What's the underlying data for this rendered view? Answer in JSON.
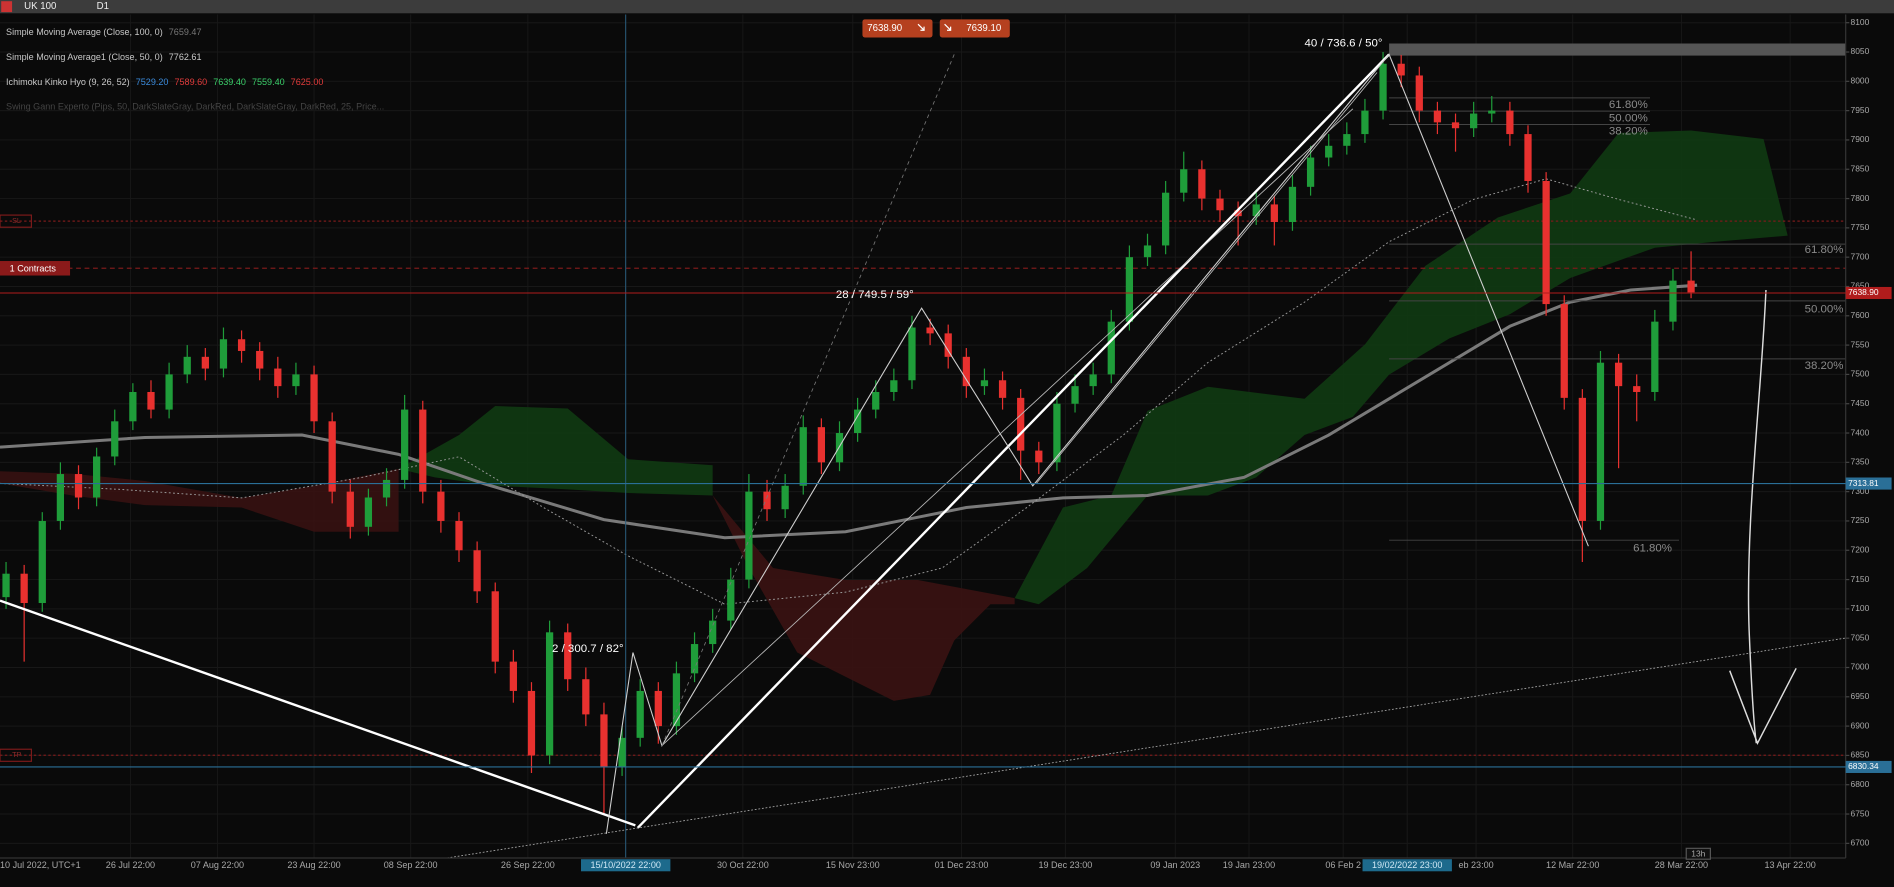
{
  "chart_data": {
    "type": "candlestick",
    "title": "UK 100",
    "timeframe": "D1",
    "up_color": "#1f9d3a",
    "down_color": "#e8312f",
    "grid": true,
    "ylim": [
      6675,
      8114
    ],
    "yticks": [
      6700,
      6750,
      6800,
      6850,
      6900,
      6950,
      7000,
      7050,
      7100,
      7150,
      7200,
      7250,
      7300,
      7350,
      7400,
      7450,
      7500,
      7550,
      7600,
      7650,
      7700,
      7750,
      7800,
      7850,
      7900,
      7950,
      8000,
      8050,
      8100
    ],
    "x_tick_labels": [
      "10 Jul 2022, UTC+1",
      "26 Jul 22:00",
      "07 Aug 22:00",
      "23 Aug 22:00",
      "08 Sep 22:00",
      "26 Sep 22:00",
      "15/10/2022 22:00",
      "30 Oct 22:00",
      "15 Nov 23:00",
      "01 Dec 23:00",
      "19 Dec 23:00",
      "09 Jan 2023",
      "19 Jan 23:00",
      "06 Feb 2",
      "19/02/2022 23:00",
      "eb 23:00",
      "12 Mar 22:00",
      "28 Mar 22:00",
      "13 Apr 22:00"
    ],
    "candles": [
      [
        7120,
        7180,
        7100,
        7160
      ],
      [
        7160,
        7175,
        7010,
        7110
      ],
      [
        7110,
        7265,
        7095,
        7250
      ],
      [
        7250,
        7350,
        7235,
        7330
      ],
      [
        7330,
        7345,
        7270,
        7290
      ],
      [
        7290,
        7375,
        7275,
        7360
      ],
      [
        7360,
        7440,
        7345,
        7420
      ],
      [
        7420,
        7485,
        7405,
        7470
      ],
      [
        7470,
        7490,
        7425,
        7440
      ],
      [
        7440,
        7520,
        7425,
        7500
      ],
      [
        7500,
        7550,
        7485,
        7530
      ],
      [
        7530,
        7545,
        7490,
        7510
      ],
      [
        7510,
        7580,
        7495,
        7560
      ],
      [
        7560,
        7575,
        7520,
        7540
      ],
      [
        7540,
        7555,
        7490,
        7510
      ],
      [
        7510,
        7530,
        7460,
        7480
      ],
      [
        7480,
        7520,
        7465,
        7500
      ],
      [
        7500,
        7515,
        7400,
        7420
      ],
      [
        7420,
        7435,
        7280,
        7300
      ],
      [
        7300,
        7320,
        7220,
        7240
      ],
      [
        7240,
        7305,
        7225,
        7290
      ],
      [
        7290,
        7340,
        7275,
        7320
      ],
      [
        7320,
        7465,
        7305,
        7440
      ],
      [
        7440,
        7455,
        7280,
        7300
      ],
      [
        7300,
        7320,
        7230,
        7250
      ],
      [
        7250,
        7265,
        7180,
        7200
      ],
      [
        7200,
        7215,
        7110,
        7130
      ],
      [
        7130,
        7145,
        6990,
        7010
      ],
      [
        7010,
        7030,
        6940,
        6960
      ],
      [
        6960,
        6975,
        6820,
        6850
      ],
      [
        6850,
        7080,
        6835,
        7060
      ],
      [
        7060,
        7075,
        6960,
        6980
      ],
      [
        6980,
        7000,
        6900,
        6920
      ],
      [
        6920,
        6940,
        6750,
        6830
      ],
      [
        6830,
        6900,
        6815,
        6880
      ],
      [
        6880,
        6980,
        6865,
        6960
      ],
      [
        6960,
        6975,
        6870,
        6900
      ],
      [
        6900,
        7010,
        6885,
        6990
      ],
      [
        6990,
        7060,
        6975,
        7040
      ],
      [
        7040,
        7100,
        7025,
        7080
      ],
      [
        7080,
        7170,
        7065,
        7150
      ],
      [
        7150,
        7330,
        7135,
        7300
      ],
      [
        7300,
        7320,
        7250,
        7270
      ],
      [
        7270,
        7330,
        7255,
        7310
      ],
      [
        7310,
        7430,
        7295,
        7410
      ],
      [
        7410,
        7425,
        7330,
        7350
      ],
      [
        7350,
        7420,
        7335,
        7400
      ],
      [
        7400,
        7460,
        7385,
        7440
      ],
      [
        7440,
        7490,
        7425,
        7470
      ],
      [
        7470,
        7510,
        7455,
        7490
      ],
      [
        7490,
        7600,
        7475,
        7580
      ],
      [
        7580,
        7595,
        7550,
        7570
      ],
      [
        7570,
        7585,
        7510,
        7530
      ],
      [
        7530,
        7545,
        7460,
        7480
      ],
      [
        7480,
        7510,
        7465,
        7490
      ],
      [
        7490,
        7505,
        7440,
        7460
      ],
      [
        7460,
        7475,
        7320,
        7370
      ],
      [
        7370,
        7385,
        7330,
        7350
      ],
      [
        7350,
        7470,
        7335,
        7450
      ],
      [
        7450,
        7500,
        7435,
        7480
      ],
      [
        7480,
        7520,
        7465,
        7500
      ],
      [
        7500,
        7610,
        7485,
        7590
      ],
      [
        7590,
        7720,
        7575,
        7700
      ],
      [
        7700,
        7740,
        7685,
        7720
      ],
      [
        7720,
        7830,
        7705,
        7810
      ],
      [
        7810,
        7880,
        7795,
        7850
      ],
      [
        7850,
        7865,
        7780,
        7800
      ],
      [
        7800,
        7815,
        7760,
        7780
      ],
      [
        7780,
        7795,
        7720,
        7770
      ],
      [
        7770,
        7810,
        7755,
        7790
      ],
      [
        7790,
        7805,
        7720,
        7760
      ],
      [
        7760,
        7840,
        7745,
        7820
      ],
      [
        7820,
        7890,
        7805,
        7870
      ],
      [
        7870,
        7910,
        7855,
        7890
      ],
      [
        7890,
        7930,
        7875,
        7910
      ],
      [
        7910,
        7970,
        7895,
        7950
      ],
      [
        7950,
        8050,
        7935,
        8030
      ],
      [
        8030,
        8045,
        7990,
        8010
      ],
      [
        8010,
        8025,
        7930,
        7950
      ],
      [
        7950,
        7965,
        7910,
        7930
      ],
      [
        7930,
        7945,
        7880,
        7920
      ],
      [
        7920,
        7965,
        7905,
        7945
      ],
      [
        7945,
        7975,
        7930,
        7950
      ],
      [
        7950,
        7965,
        7890,
        7910
      ],
      [
        7910,
        7925,
        7810,
        7830
      ],
      [
        7830,
        7845,
        7600,
        7620
      ],
      [
        7620,
        7635,
        7440,
        7460
      ],
      [
        7460,
        7475,
        7180,
        7250
      ],
      [
        7250,
        7540,
        7235,
        7520
      ],
      [
        7520,
        7535,
        7340,
        7480
      ],
      [
        7480,
        7500,
        7420,
        7470
      ],
      [
        7470,
        7610,
        7455,
        7590
      ],
      [
        7590,
        7680,
        7575,
        7660
      ],
      [
        7660,
        7710,
        7630,
        7640
      ]
    ],
    "price_lines": [
      {
        "value": 7638.9,
        "label": "7638.90"
      },
      7313.81,
      6830.34
    ],
    "price_line_colors": [
      "#b01c1c",
      "#2a6f97",
      "#2a6f97"
    ],
    "indicators": [
      {
        "name": "Simple Moving Average (Close, 100, 0)",
        "values": [
          "7659.47"
        ]
      },
      {
        "name": "Simple Moving Average1 (Close, 50, 0)",
        "values": [
          "7762.61"
        ]
      },
      {
        "name": "Ichimoku Kinko Hyo (9, 26, 52)",
        "values": [
          "7529.20",
          "7589.60",
          "7639.40",
          "7559.40",
          "7625.00"
        ]
      },
      {
        "name": "Swing Gann Experto  (Pips, 50, DarkSlateGray, DarkRed, DarkSlateGray, DarkRed, 25, Price...",
        "values": []
      }
    ],
    "sell_price": "7638.90",
    "buy_price": "7639.10",
    "annotations": [
      "40 / 736.6 / 50°",
      "28 / 749.5 / 59°",
      "2 / 300.7 / 82°"
    ],
    "fib_top": [
      "61.80%",
      "50.00%",
      "38.20%"
    ],
    "fib_right": [
      "61.80%",
      "50.00%",
      "38.20%"
    ],
    "fib_bottom": "61.80%",
    "order_label": "1 Contracts",
    "sl_label": "SL",
    "tp_label": "TP",
    "countdown": "13h"
  }
}
